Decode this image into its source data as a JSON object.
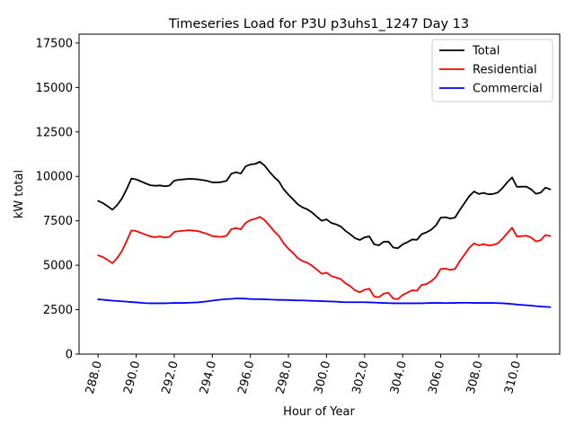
{
  "chart_data": {
    "type": "line",
    "title": "Timeseries Load for P3U p3uhs1_1247  Day 13",
    "xlabel": "Hour of Year",
    "ylabel": "kW total",
    "xlim": [
      287.0,
      312.25
    ],
    "ylim": [
      0,
      18000
    ],
    "xticks": [
      288,
      290,
      292,
      294,
      296,
      298,
      300,
      302,
      304,
      306,
      308,
      310
    ],
    "xtick_labels": [
      "288.0",
      "290.0",
      "292.0",
      "294.0",
      "296.0",
      "298.0",
      "300.0",
      "302.0",
      "304.0",
      "306.0",
      "308.0",
      "310.0"
    ],
    "yticks": [
      0,
      2500,
      5000,
      7500,
      10000,
      12500,
      15000,
      17500
    ],
    "ytick_labels": [
      "0",
      "2500",
      "5000",
      "7500",
      "10000",
      "12500",
      "15000",
      "17500"
    ],
    "grid": false,
    "legend_position": "top-right",
    "x": [
      288.0,
      288.25,
      288.5,
      288.75,
      289.0,
      289.25,
      289.5,
      289.75,
      290.0,
      290.25,
      290.5,
      290.75,
      291.0,
      291.25,
      291.5,
      291.75,
      292.0,
      292.25,
      292.5,
      292.75,
      293.0,
      293.25,
      293.5,
      293.75,
      294.0,
      294.25,
      294.5,
      294.75,
      295.0,
      295.25,
      295.5,
      295.75,
      296.0,
      296.25,
      296.5,
      296.75,
      297.0,
      297.25,
      297.5,
      297.75,
      298.0,
      298.25,
      298.5,
      298.75,
      299.0,
      299.25,
      299.5,
      299.75,
      300.0,
      300.25,
      300.5,
      300.75,
      301.0,
      301.25,
      301.5,
      301.75,
      302.0,
      302.25,
      302.5,
      302.75,
      303.0,
      303.25,
      303.5,
      303.75,
      304.0,
      304.25,
      304.5,
      304.75,
      305.0,
      305.25,
      305.5,
      305.75,
      306.0,
      306.25,
      306.5,
      306.75,
      307.0,
      307.25,
      307.5,
      307.75,
      308.0,
      308.25,
      308.5,
      308.75,
      309.0,
      309.25,
      309.5,
      309.75,
      310.0,
      310.25,
      310.5,
      310.75,
      311.0,
      311.25,
      311.5,
      311.75
    ],
    "series": [
      {
        "name": "Total",
        "color": "#000000",
        "values": [
          8620,
          8500,
          8320,
          8120,
          8380,
          8750,
          9280,
          9880,
          9830,
          9720,
          9600,
          9500,
          9470,
          9490,
          9440,
          9480,
          9760,
          9810,
          9830,
          9860,
          9850,
          9830,
          9790,
          9740,
          9660,
          9660,
          9680,
          9750,
          10150,
          10230,
          10160,
          10560,
          10670,
          10700,
          10820,
          10600,
          10260,
          9960,
          9710,
          9270,
          8970,
          8700,
          8420,
          8250,
          8140,
          7960,
          7720,
          7500,
          7580,
          7380,
          7300,
          7180,
          6930,
          6740,
          6520,
          6420,
          6570,
          6620,
          6180,
          6120,
          6320,
          6330,
          6000,
          5960,
          6170,
          6300,
          6450,
          6430,
          6750,
          6850,
          7000,
          7250,
          7680,
          7700,
          7630,
          7680,
          8110,
          8500,
          8890,
          9150,
          9010,
          9070,
          8990,
          9010,
          9090,
          9350,
          9670,
          9940,
          9410,
          9420,
          9420,
          9270,
          9020,
          9080,
          9370,
          9270
        ]
      },
      {
        "name": "Residential",
        "color": "#ff0000",
        "values": [
          5560,
          5460,
          5300,
          5110,
          5400,
          5790,
          6360,
          6960,
          6920,
          6820,
          6720,
          6620,
          6580,
          6620,
          6560,
          6600,
          6870,
          6920,
          6940,
          6970,
          6950,
          6920,
          6840,
          6760,
          6640,
          6610,
          6600,
          6660,
          7030,
          7090,
          7020,
          7380,
          7540,
          7610,
          7720,
          7540,
          7230,
          6910,
          6650,
          6230,
          5930,
          5680,
          5390,
          5230,
          5140,
          4960,
          4750,
          4520,
          4580,
          4390,
          4310,
          4220,
          3980,
          3820,
          3590,
          3480,
          3620,
          3680,
          3240,
          3200,
          3400,
          3450,
          3130,
          3090,
          3330,
          3460,
          3590,
          3570,
          3890,
          3940,
          4100,
          4340,
          4790,
          4810,
          4740,
          4790,
          5230,
          5600,
          5980,
          6230,
          6120,
          6190,
          6110,
          6140,
          6230,
          6500,
          6810,
          7110,
          6620,
          6640,
          6660,
          6560,
          6340,
          6410,
          6700,
          6640
        ]
      },
      {
        "name": "Commercial",
        "color": "#0000ff",
        "values": [
          3080,
          3060,
          3030,
          3010,
          2990,
          2970,
          2950,
          2930,
          2910,
          2890,
          2870,
          2860,
          2860,
          2860,
          2860,
          2870,
          2880,
          2880,
          2880,
          2890,
          2900,
          2910,
          2940,
          2970,
          3010,
          3040,
          3070,
          3090,
          3110,
          3130,
          3130,
          3120,
          3100,
          3090,
          3090,
          3080,
          3070,
          3060,
          3050,
          3050,
          3040,
          3030,
          3020,
          3020,
          3010,
          3000,
          2990,
          2980,
          2970,
          2960,
          2950,
          2930,
          2920,
          2920,
          2920,
          2920,
          2920,
          2910,
          2900,
          2890,
          2880,
          2870,
          2860,
          2860,
          2860,
          2860,
          2860,
          2860,
          2860,
          2870,
          2880,
          2880,
          2880,
          2870,
          2880,
          2880,
          2890,
          2890,
          2890,
          2880,
          2880,
          2880,
          2880,
          2880,
          2870,
          2860,
          2840,
          2820,
          2790,
          2770,
          2750,
          2730,
          2700,
          2680,
          2660,
          2640
        ]
      }
    ]
  }
}
